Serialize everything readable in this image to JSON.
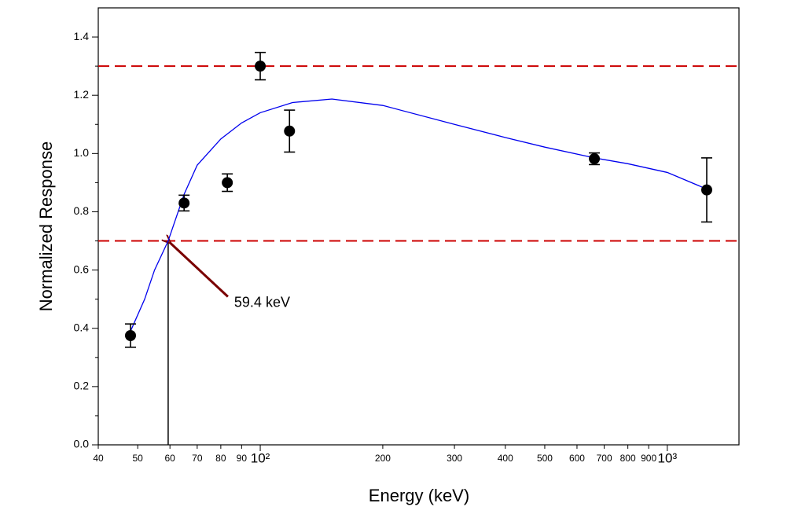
{
  "chart_data": {
    "type": "scatter",
    "x_label": "Energy (keV)",
    "y_label": "Normalized Response",
    "xscale": "log",
    "xlim": [
      40,
      1500
    ],
    "ylim": [
      0,
      1.5
    ],
    "xticks": [
      40,
      50,
      60,
      70,
      80,
      90,
      {
        "value": 100,
        "label": "10²"
      },
      200,
      300,
      400,
      500,
      600,
      700,
      800,
      900,
      {
        "value": 1000,
        "label": "10³"
      }
    ],
    "yticks": [
      {
        "value": 0,
        "label": "0.0"
      },
      0.2,
      0.4,
      0.6,
      0.8,
      {
        "value": 1,
        "label": "1.0"
      },
      1.2,
      1.4
    ],
    "series": [
      {
        "color": "#000000",
        "x": [
          48,
          65,
          83,
          100,
          118,
          662,
          1250
        ],
        "values": [
          0.375,
          0.83,
          0.9,
          1.3,
          1.077,
          0.982,
          0.875
        ],
        "errors": [
          0.04,
          0.027,
          0.03,
          0.047,
          0.072,
          0.02,
          0.11
        ]
      }
    ],
    "curve": {
      "color": "#0000ee",
      "x": [
        48,
        52,
        55,
        59.4,
        65,
        70,
        80,
        90,
        100,
        120,
        150,
        200,
        300,
        400,
        500,
        662,
        800,
        1000,
        1250
      ],
      "y": [
        0.39,
        0.5,
        0.6,
        0.7,
        0.86,
        0.96,
        1.05,
        1.105,
        1.14,
        1.175,
        1.187,
        1.165,
        1.1,
        1.055,
        1.022,
        0.985,
        0.965,
        0.935,
        0.878
      ]
    },
    "reference_lines": {
      "values": [
        1.3,
        0.7
      ],
      "color": "#cc0000"
    },
    "annotation": {
      "text": "59.4 keV",
      "x": 59.4,
      "y": 0.7,
      "color": "#7a0000"
    }
  }
}
